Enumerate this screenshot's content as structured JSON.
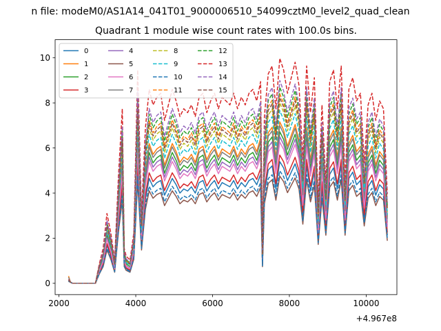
{
  "figure": {
    "suptitle": "n file: modeM0/AS1A14_041T01_9000006510_54099cztM0_level2_quad_clean",
    "title": "Quadrant 1 module wise count rates with 100.0s bins.",
    "offset_label": "+4.967e8"
  },
  "chart_data": {
    "type": "line",
    "title": "Quadrant 1 module wise count rates with 100.0s bins.",
    "xlim": [
      1900,
      10800
    ],
    "ylim": [
      -0.5,
      10.8
    ],
    "x_offset": 496700000,
    "xticks": [
      2000,
      4000,
      6000,
      8000,
      10000
    ],
    "xtick_labels": [
      "2000",
      "4000",
      "6000",
      "8000",
      "10000"
    ],
    "yticks": [
      0,
      2,
      4,
      6,
      8,
      10
    ],
    "ytick_labels": [
      "0",
      "2",
      "4",
      "6",
      "8",
      "10"
    ],
    "legend_position": "top-left",
    "legend_columns": 4,
    "x": [
      2250,
      2300,
      2350,
      2450,
      2550,
      2650,
      2750,
      2850,
      2950,
      3050,
      3150,
      3250,
      3350,
      3450,
      3550,
      3650,
      3700,
      3750,
      3850,
      3950,
      4050,
      4150,
      4250,
      4350,
      4450,
      4550,
      4650,
      4750,
      4850,
      4950,
      5050,
      5150,
      5250,
      5350,
      5450,
      5550,
      5650,
      5750,
      5850,
      5950,
      6050,
      6150,
      6250,
      6350,
      6450,
      6550,
      6650,
      6750,
      6850,
      6950,
      7050,
      7150,
      7250,
      7300,
      7350,
      7450,
      7550,
      7650,
      7750,
      7850,
      7950,
      8050,
      8150,
      8250,
      8350,
      8450,
      8550,
      8650,
      8750,
      8850,
      8950,
      9050,
      9150,
      9250,
      9350,
      9450,
      9550,
      9650,
      9750,
      9850,
      9950,
      10050,
      10150,
      10250,
      10350,
      10450,
      10550
    ],
    "base": [
      0.1,
      0.05,
      0,
      0,
      0,
      0,
      0,
      0,
      0,
      0.5,
      0.9,
      1.8,
      1.3,
      0.6,
      2.8,
      4.5,
      0.9,
      0.7,
      0.6,
      1.3,
      5.5,
      1.8,
      4.0,
      5.0,
      4.6,
      4.8,
      4.9,
      4.2,
      4.6,
      5.0,
      4.7,
      4.3,
      4.5,
      4.4,
      4.6,
      4.3,
      4.8,
      4.9,
      4.4,
      4.7,
      4.9,
      4.5,
      4.8,
      4.7,
      4.6,
      4.9,
      4.5,
      4.8,
      4.6,
      4.9,
      5.0,
      4.7,
      5.2,
      0.9,
      4.3,
      5.4,
      5.6,
      4.5,
      5.8,
      5.5,
      4.9,
      5.3,
      5.7,
      5.1,
      3.2,
      5.6,
      4.4,
      5.3,
      2.1,
      4.6,
      2.6,
      5.2,
      5.5,
      4.5,
      5.6,
      2.6,
      5.0,
      5.3,
      4.7,
      4.9,
      3.1,
      4.6,
      4.9,
      4.2,
      4.7,
      4.5,
      2.3
    ],
    "series": [
      {
        "name": "0",
        "color": "#1f77b4",
        "dashed": false,
        "factor": 0.93,
        "add": 0.0
      },
      {
        "name": "1",
        "color": "#ff7f0e",
        "dashed": false,
        "factor": 1.2,
        "add": 0.2
      },
      {
        "name": "2",
        "color": "#2ca02c",
        "dashed": false,
        "factor": 1.15,
        "add": 0.05
      },
      {
        "name": "3",
        "color": "#d62728",
        "dashed": false,
        "factor": 0.98,
        "add": 0.0
      },
      {
        "name": "4",
        "color": "#9467bd",
        "dashed": false,
        "factor": 1.12,
        "add": 0.0
      },
      {
        "name": "5",
        "color": "#8c564b",
        "dashed": false,
        "factor": 0.82,
        "add": 0.0
      },
      {
        "name": "6",
        "color": "#e377c2",
        "dashed": false,
        "factor": 1.08,
        "add": 0.0
      },
      {
        "name": "7",
        "color": "#7f7f7f",
        "dashed": false,
        "factor": 1.18,
        "add": 0.15
      },
      {
        "name": "8",
        "color": "#bcbd22",
        "dashed": true,
        "factor": 1.38,
        "add": 0.0
      },
      {
        "name": "9",
        "color": "#17becf",
        "dashed": true,
        "factor": 1.32,
        "add": 0.0
      },
      {
        "name": "10",
        "color": "#1f77b4",
        "dashed": true,
        "factor": 0.86,
        "add": 0.0
      },
      {
        "name": "11",
        "color": "#ff7f0e",
        "dashed": true,
        "factor": 1.45,
        "add": 0.0
      },
      {
        "name": "12",
        "color": "#2ca02c",
        "dashed": true,
        "factor": 1.5,
        "add": 0.0
      },
      {
        "name": "13",
        "color": "#d62728",
        "dashed": true,
        "factor": 1.72,
        "add": 0.0
      },
      {
        "name": "14",
        "color": "#9467bd",
        "dashed": true,
        "factor": 1.55,
        "add": 0.0
      },
      {
        "name": "15",
        "color": "#8c564b",
        "dashed": true,
        "factor": 1.42,
        "add": 0.0
      }
    ]
  }
}
